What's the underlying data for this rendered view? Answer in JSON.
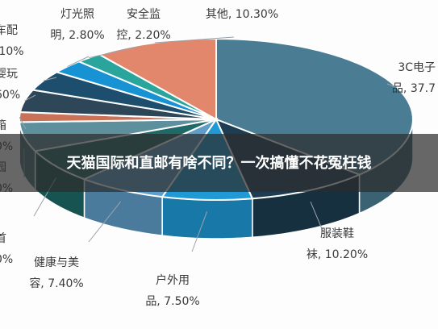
{
  "banner": {
    "title": "天猫国际和直邮有啥不同？一次搞懂不花冤枉钱"
  },
  "chart_data": {
    "type": "pie",
    "title": "",
    "unit": "%",
    "series": [
      {
        "label_lines": [
          "3C电子",
          "品, 37.7"
        ],
        "value": 37.7,
        "color": "#4a7d94"
      },
      {
        "label_lines": [
          "服装鞋",
          "袜, 10.20%"
        ],
        "value": 10.2,
        "color": "#1e3d52"
      },
      {
        "label_lines": [
          "户外用",
          "品, 7.50%"
        ],
        "value": 7.5,
        "color": "#1f9ad6"
      },
      {
        "label_lines": [
          "健康与美",
          "容, 7.40%"
        ],
        "value": 7.4,
        "color": "#5f9ec9"
      },
      {
        "label_lines": [
          "首",
          "0%"
        ],
        "value": 7.0,
        "color": "#1e6a66"
      },
      {
        "label_lines": [
          "园",
          "0%"
        ],
        "value": 6.0,
        "color": "#5e8f9c"
      },
      {
        "label_lines": [
          "箱",
          "0%"
        ],
        "value": 2.0,
        "color": "#c97258"
      },
      {
        "label_lines": [
          "婴玩",
          "60%"
        ],
        "value": 4.6,
        "color": "#2d4658"
      },
      {
        "label_lines": [
          "车配",
          ".10%"
        ],
        "value": 4.1,
        "color": "#1d4e6e"
      },
      {
        "label_lines": [
          "灯光照",
          "明, 2.80%"
        ],
        "value": 2.8,
        "color": "#1793d4"
      },
      {
        "label_lines": [
          "安全监",
          "控, 2.20%"
        ],
        "value": 2.2,
        "color": "#2aa59c"
      },
      {
        "label_lines": [
          "其他, 10.30%"
        ],
        "value": 10.3,
        "color": "#e2866c"
      }
    ]
  }
}
